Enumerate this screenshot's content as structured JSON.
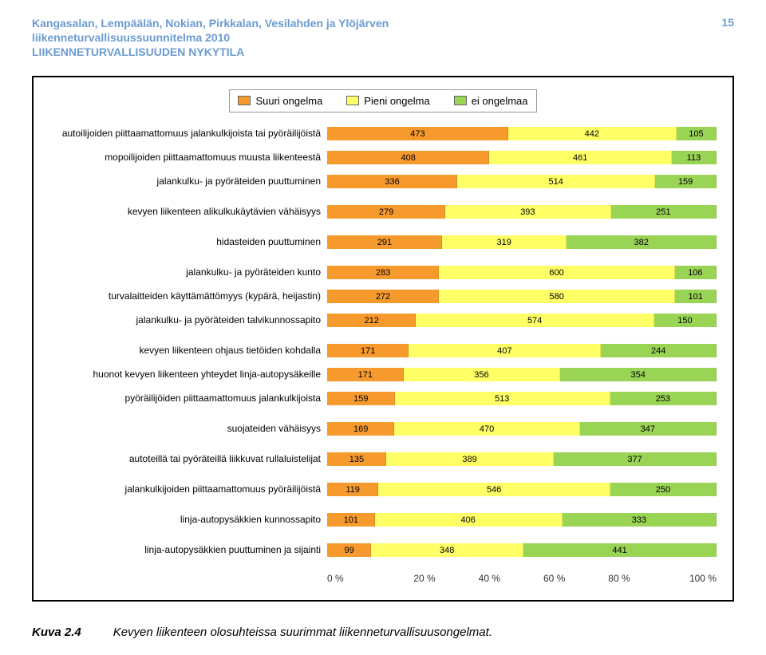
{
  "header": {
    "line1": "Kangasalan, Lempäälän, Nokian, Pirkkalan, Vesilahden ja Ylöjärven",
    "line2": "liikenneturvallisuussuunnitelma 2010",
    "line3": "LIIKENNETURVALLISUUDEN NYKYTILA",
    "pageNum": "15"
  },
  "legend": {
    "items": [
      {
        "label": "Suuri ongelma",
        "color": "#f79a2e"
      },
      {
        "label": "Pieni ongelma",
        "color": "#ffff66"
      },
      {
        "label": "ei ongelmaa",
        "color": "#99d455"
      }
    ]
  },
  "chart": {
    "colors": {
      "suuri": "#f79a2e",
      "pieni": "#ffff66",
      "ei": "#99d455",
      "grid": "#cccccc"
    },
    "groups": [
      {
        "rows": [
          {
            "label": "autoilijoiden piittaamattomuus jalankulkijoista tai pyöräilijöistä",
            "vals": [
              473,
              442,
              105
            ]
          },
          {
            "label": "mopoilijoiden piittaamattomuus muusta liikenteestä",
            "vals": [
              408,
              461,
              113
            ]
          },
          {
            "label": "jalankulku- ja pyöräteiden puuttuminen",
            "vals": [
              336,
              514,
              159
            ]
          }
        ]
      },
      {
        "rows": [
          {
            "label": "kevyen liikenteen alikulkukäytävien vähäisyys",
            "vals": [
              279,
              393,
              251
            ]
          }
        ]
      },
      {
        "rows": [
          {
            "label": "hidasteiden puuttuminen",
            "vals": [
              291,
              319,
              382
            ]
          }
        ]
      },
      {
        "rows": [
          {
            "label": "jalankulku- ja pyöräteiden kunto",
            "vals": [
              283,
              600,
              106
            ]
          },
          {
            "label": "turvalaitteiden käyttämättömyys (kypärä, heijastin)",
            "vals": [
              272,
              580,
              101
            ]
          },
          {
            "label": "jalankulku- ja pyöräteiden talvikunnossapito",
            "vals": [
              212,
              574,
              150
            ]
          }
        ]
      },
      {
        "rows": [
          {
            "label": "kevyen liikenteen ohjaus tietöiden kohdalla",
            "vals": [
              171,
              407,
              244
            ]
          },
          {
            "label": "huonot kevyen liikenteen yhteydet linja-autopysäkeille",
            "vals": [
              171,
              356,
              354
            ]
          },
          {
            "label": "pyöräilijöiden piittaamattomuus jalankulkijoista",
            "vals": [
              159,
              513,
              253
            ]
          }
        ]
      },
      {
        "rows": [
          {
            "label": "suojateiden vähäisyys",
            "vals": [
              169,
              470,
              347
            ]
          }
        ]
      },
      {
        "rows": [
          {
            "label": "autoteillä tai pyöräteillä liikkuvat rullaluistelijat",
            "vals": [
              135,
              389,
              377
            ]
          }
        ]
      },
      {
        "rows": [
          {
            "label": "jalankulkijoiden piittaamattomuus pyöräilijöistä",
            "vals": [
              119,
              546,
              250
            ]
          }
        ]
      },
      {
        "rows": [
          {
            "label": "linja-autopysäkkien kunnossapito",
            "vals": [
              101,
              406,
              333
            ]
          }
        ]
      },
      {
        "rows": [
          {
            "label": "linja-autopysäkkien puuttuminen ja sijainti",
            "vals": [
              99,
              348,
              441
            ]
          }
        ]
      }
    ],
    "xTicks": [
      "0 %",
      "20 %",
      "40 %",
      "60 %",
      "80 %",
      "100 %"
    ]
  },
  "caption": {
    "label": "Kuva 2.4",
    "text": "Kevyen liikenteen olosuhteissa suurimmat liikenneturvallisuusongelmat."
  }
}
